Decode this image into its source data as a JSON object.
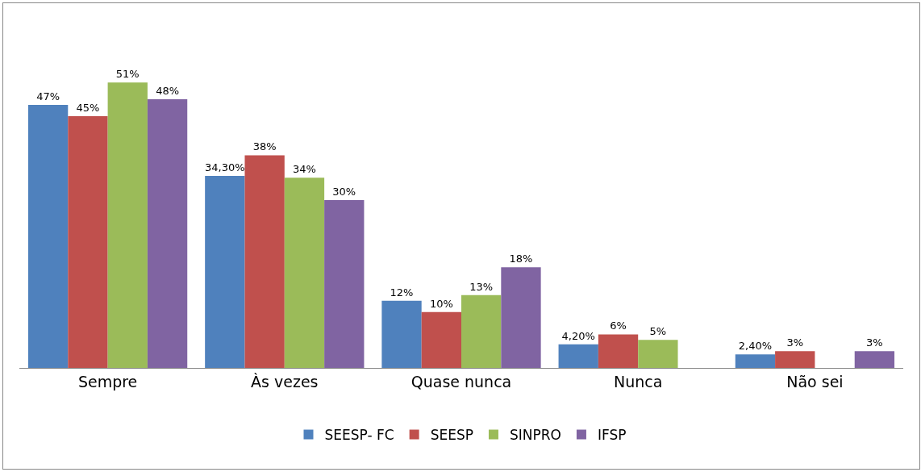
{
  "chart_data": {
    "type": "bar",
    "categories": [
      "Sempre",
      "Às vezes",
      "Quase nunca",
      "Nunca",
      "Não sei"
    ],
    "series": [
      {
        "name": "SEESP- FC",
        "color": "#4f81bd",
        "values": [
          47,
          34.3,
          12,
          4.2,
          2.4
        ],
        "value_labels": [
          "47%",
          "34,30%",
          "12%",
          "4,20%",
          "2,40%"
        ]
      },
      {
        "name": "SEESP",
        "color": "#c0504d",
        "values": [
          45,
          38,
          10,
          6,
          3
        ],
        "value_labels": [
          "45%",
          "38%",
          "10%",
          "6%",
          "3%"
        ]
      },
      {
        "name": "SINPRO",
        "color": "#9bbb59",
        "values": [
          51,
          34,
          13,
          5,
          null
        ],
        "value_labels": [
          "51%",
          "34%",
          "13%",
          "5%",
          null
        ]
      },
      {
        "name": "IFSP",
        "color": "#8064a2",
        "values": [
          48,
          30,
          18,
          null,
          3
        ],
        "value_labels": [
          "48%",
          "30%",
          "18%",
          null,
          "3%"
        ]
      }
    ],
    "legend": "bottom"
  }
}
